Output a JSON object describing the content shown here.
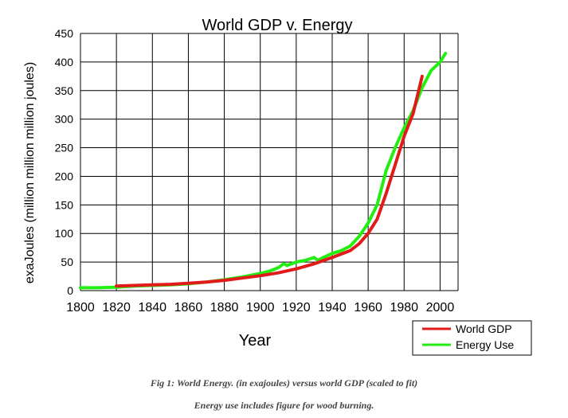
{
  "chart_data": {
    "type": "line",
    "title": "World GDP v. Energy",
    "xlabel": "Year",
    "ylabel": "exaJoules (million million million joules)",
    "xlim": [
      1800,
      2010
    ],
    "ylim": [
      0,
      450
    ],
    "xticks": [
      1800,
      1820,
      1840,
      1860,
      1880,
      1900,
      1920,
      1940,
      1960,
      1980,
      2000
    ],
    "yticks": [
      0,
      50,
      100,
      150,
      200,
      250,
      300,
      350,
      400,
      450
    ],
    "grid": true,
    "legend_position": "bottom-right, outside plot",
    "series": [
      {
        "name": "World GDP",
        "color": "#e11a1a",
        "points": [
          [
            1820,
            8
          ],
          [
            1830,
            9
          ],
          [
            1840,
            10
          ],
          [
            1850,
            11
          ],
          [
            1860,
            13
          ],
          [
            1870,
            15
          ],
          [
            1880,
            18
          ],
          [
            1890,
            22
          ],
          [
            1900,
            26
          ],
          [
            1910,
            31
          ],
          [
            1920,
            38
          ],
          [
            1930,
            47
          ],
          [
            1940,
            58
          ],
          [
            1950,
            70
          ],
          [
            1955,
            82
          ],
          [
            1960,
            100
          ],
          [
            1965,
            125
          ],
          [
            1970,
            170
          ],
          [
            1975,
            220
          ],
          [
            1980,
            270
          ],
          [
            1985,
            310
          ],
          [
            1990,
            375
          ]
        ]
      },
      {
        "name": "Energy Use",
        "color": "#22ee11",
        "points": [
          [
            1800,
            5
          ],
          [
            1810,
            5
          ],
          [
            1820,
            6
          ],
          [
            1830,
            8
          ],
          [
            1840,
            9
          ],
          [
            1850,
            10
          ],
          [
            1860,
            12
          ],
          [
            1870,
            15
          ],
          [
            1880,
            19
          ],
          [
            1890,
            24
          ],
          [
            1900,
            30
          ],
          [
            1905,
            34
          ],
          [
            1910,
            40
          ],
          [
            1913,
            47
          ],
          [
            1915,
            44
          ],
          [
            1920,
            50
          ],
          [
            1925,
            53
          ],
          [
            1930,
            58
          ],
          [
            1932,
            53
          ],
          [
            1935,
            58
          ],
          [
            1940,
            65
          ],
          [
            1945,
            70
          ],
          [
            1950,
            78
          ],
          [
            1955,
            95
          ],
          [
            1960,
            118
          ],
          [
            1965,
            150
          ],
          [
            1970,
            210
          ],
          [
            1975,
            250
          ],
          [
            1980,
            285
          ],
          [
            1985,
            315
          ],
          [
            1990,
            355
          ],
          [
            1995,
            385
          ],
          [
            2000,
            400
          ],
          [
            2003,
            415
          ]
        ]
      }
    ]
  },
  "captions": {
    "line1": "Fig 1: World Energy. (in exajoules) versus world GDP (scaled to fit)",
    "line2": "Energy use includes figure for wood burning."
  }
}
